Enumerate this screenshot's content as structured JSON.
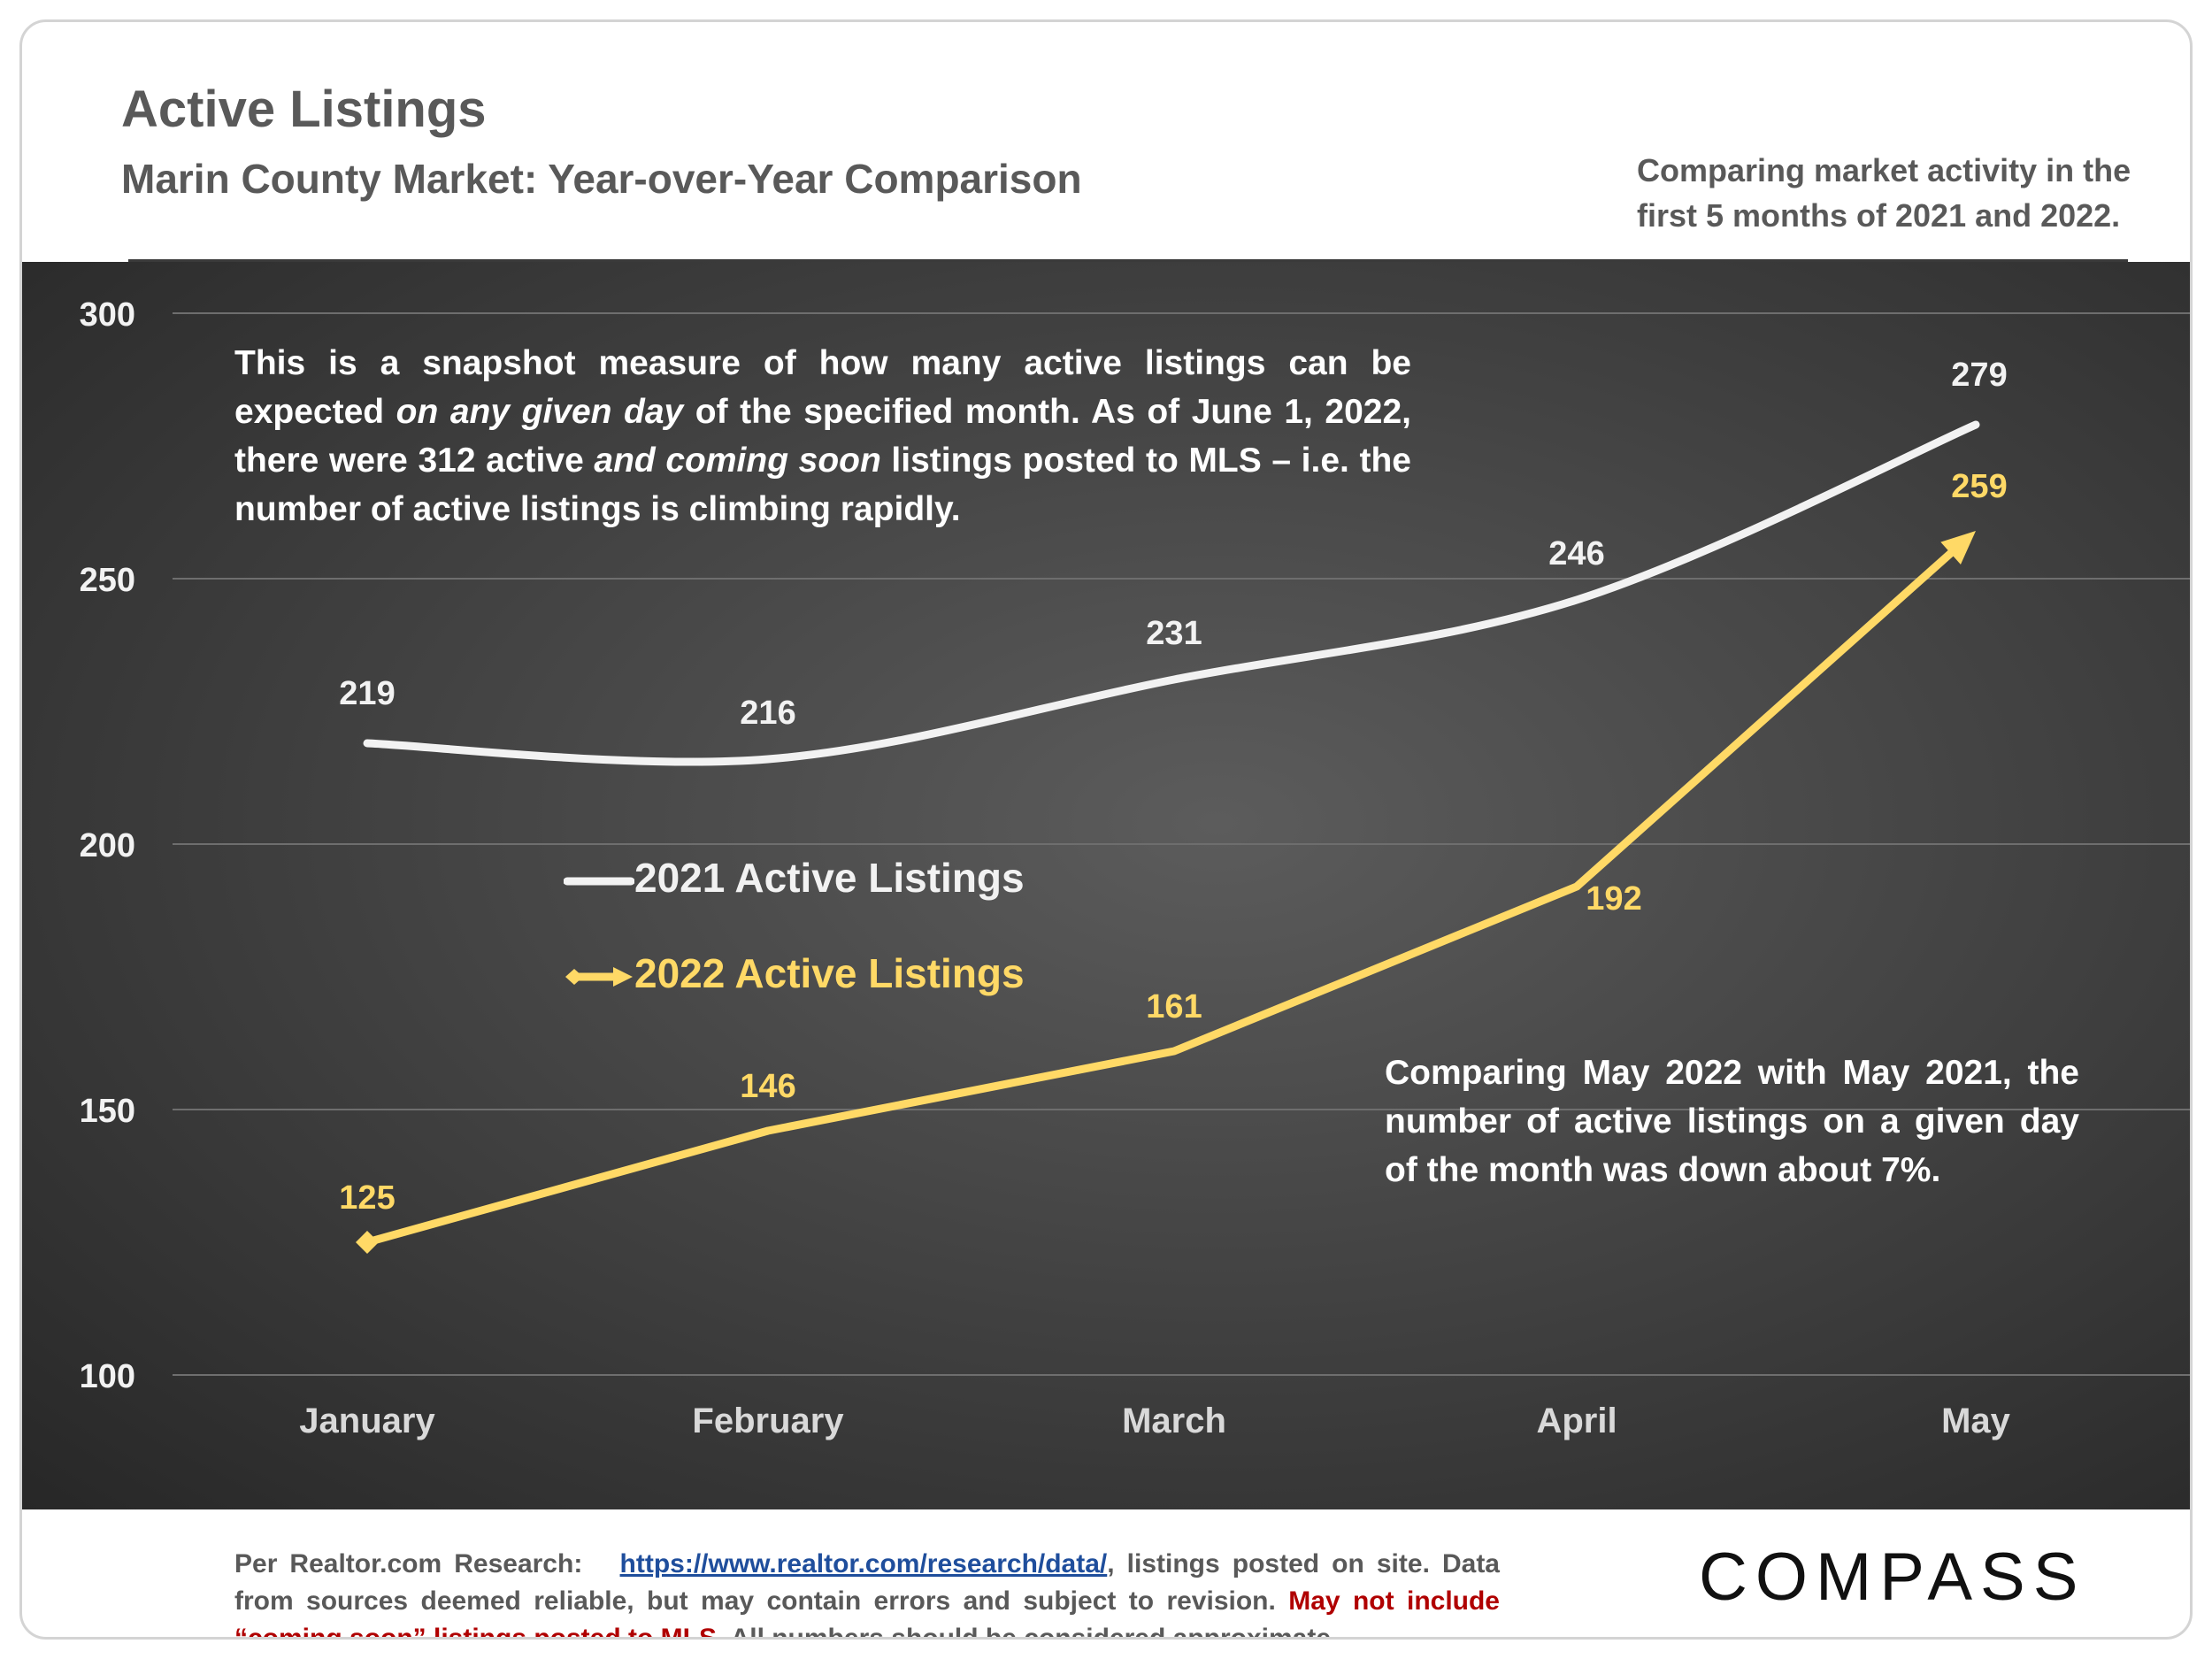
{
  "header": {
    "title": "Active Listings",
    "subtitle": "Marin County Market: Year-over-Year Comparison",
    "note": "Comparing market activity in the first 5 months of 2021 and 2022."
  },
  "annotations": {
    "snapshot": {
      "p1": "This is a snapshot measure of how many active listings can be expected ",
      "p2": "on any given day",
      "p3": " of the specified month. As of June 1, 2022, there were 312 active ",
      "p4": "and coming soon",
      "p5": " listings posted to MLS – i.e. the number of active listings is climbing rapidly."
    },
    "comparison": "Comparing May 2022 with May 2021, the number of active listings on a given day of the month was down about 7%."
  },
  "footer": {
    "lead": "Per Realtor.com Research:",
    "link": "https://www.realtor.com/research/data/",
    "mid": ", listings posted on site. Data from sources deemed reliable, but may contain errors and subject to revision. ",
    "warning": "May not include “coming soon” listings posted to MLS.",
    "tail": " All numbers should be considered approximate."
  },
  "brand": {
    "logo": "COMPASS"
  },
  "colors": {
    "series_2021": "#f2f2f2",
    "series_2022": "#ffd966",
    "text_gray": "#595959",
    "warning_red": "#b00000",
    "link_blue": "#1f4e9c"
  },
  "chart_data": {
    "type": "line",
    "categories": [
      "January",
      "February",
      "March",
      "April",
      "May"
    ],
    "ylim": [
      100,
      300
    ],
    "yticks": [
      100,
      150,
      200,
      250,
      300
    ],
    "grid": true,
    "legend_placement": "center-left",
    "series": [
      {
        "name": "2021 Active Listings",
        "values": [
          219,
          216,
          231,
          246,
          279
        ],
        "style": "smooth"
      },
      {
        "name": "2022 Active Listings",
        "values": [
          125,
          146,
          161,
          192,
          259
        ],
        "style": "straight-arrow"
      }
    ]
  }
}
